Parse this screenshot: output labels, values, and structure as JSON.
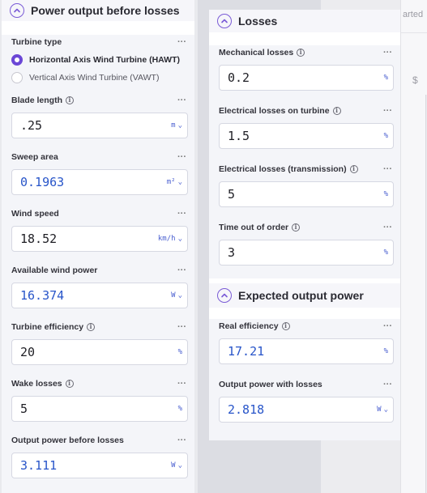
{
  "background": {
    "right_text": "arted",
    "dollar_text": "$"
  },
  "power_before": {
    "title": "Power output before losses",
    "turbine_type": {
      "label": "Turbine type",
      "options": [
        {
          "label": "Horizontal Axis Wind Turbine (HAWT)",
          "selected": true
        },
        {
          "label": "Vertical Axis Wind Turbine (VAWT)",
          "selected": false
        }
      ]
    },
    "blade_length": {
      "label": "Blade length",
      "value": ".25",
      "unit": "m"
    },
    "sweep_area": {
      "label": "Sweep area",
      "value": "0.1963",
      "unit": "m²"
    },
    "wind_speed": {
      "label": "Wind speed",
      "value": "18.52",
      "unit": "km/h"
    },
    "available_power": {
      "label": "Available wind power",
      "value": "16.374",
      "unit": "W"
    },
    "turbine_efficiency": {
      "label": "Turbine efficiency",
      "value": "20",
      "unit": "%"
    },
    "wake_losses": {
      "label": "Wake losses",
      "value": "5",
      "unit": "%"
    },
    "output_before": {
      "label": "Output power before losses",
      "value": "3.111",
      "unit": "W"
    }
  },
  "losses": {
    "title": "Losses",
    "mechanical": {
      "label": "Mechanical losses",
      "value": "0.2",
      "unit": "%"
    },
    "electrical_turbine": {
      "label": "Electrical losses on turbine",
      "value": "1.5",
      "unit": "%"
    },
    "electrical_transmission": {
      "label": "Electrical losses (transmission)",
      "value": "5",
      "unit": "%"
    },
    "time_out": {
      "label": "Time out of order",
      "value": "3",
      "unit": "%"
    }
  },
  "expected": {
    "title": "Expected output power",
    "real_efficiency": {
      "label": "Real efficiency",
      "value": "17.21",
      "unit": "%"
    },
    "output_with_losses": {
      "label": "Output power with losses",
      "value": "2.818",
      "unit": "W"
    }
  },
  "ui": {
    "more": "···",
    "caret": "⌄"
  },
  "colors": {
    "accent": "#6b47d6",
    "calculated_text": "#2855c9",
    "unit_text": "#4a5fd0"
  }
}
